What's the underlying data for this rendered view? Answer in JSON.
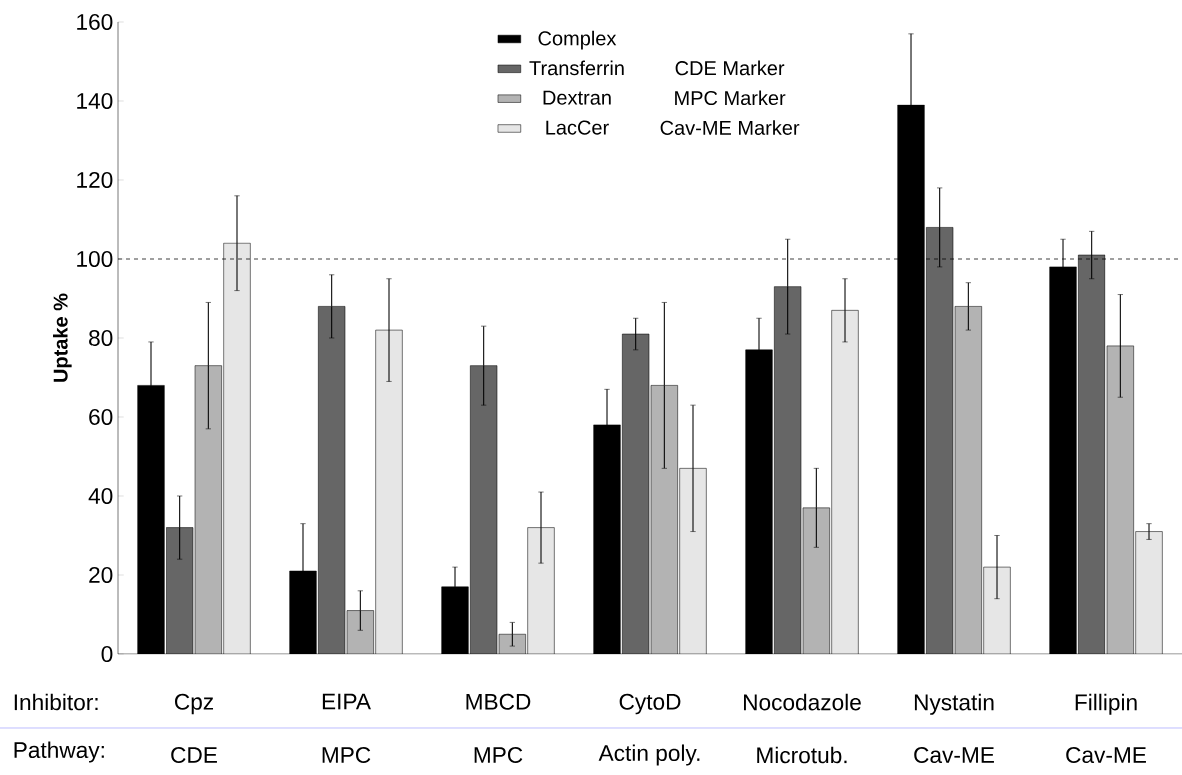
{
  "chart_data": {
    "type": "bar",
    "ylabel": "Uptake %",
    "categories": [
      "Cpz",
      "EIPA",
      "MBCD",
      "CytoD",
      "Nocodazole",
      "Nystatin",
      "Fillipin"
    ],
    "series": [
      {
        "name": "Complex",
        "color": "#000000",
        "values": [
          68,
          21,
          17,
          58,
          77,
          139,
          98
        ],
        "errors": [
          11,
          12,
          5,
          9,
          8,
          18,
          7
        ]
      },
      {
        "name": "Transferrin",
        "color": "#666666",
        "values": [
          32,
          88,
          73,
          81,
          93,
          108,
          101
        ],
        "errors": [
          8,
          8,
          10,
          4,
          12,
          10,
          6
        ]
      },
      {
        "name": "Dextran",
        "color": "#b3b3b3",
        "values": [
          73,
          11,
          5,
          68,
          37,
          88,
          78
        ],
        "errors": [
          16,
          5,
          3,
          21,
          10,
          6,
          13
        ]
      },
      {
        "name": "LacCer",
        "color": "#e6e6e6",
        "values": [
          104,
          82,
          32,
          47,
          87,
          22,
          31
        ],
        "errors": [
          12,
          13,
          9,
          16,
          8,
          8,
          2
        ]
      }
    ],
    "ylim": [
      0,
      160
    ],
    "yticks": [
      0,
      20,
      40,
      60,
      80,
      100,
      120,
      140,
      160
    ],
    "ref_lines": [
      {
        "axis": "y",
        "value": 100,
        "color": "#000000",
        "line_style": "dashed"
      }
    ],
    "legend": "top",
    "annotations": [
      "Inhibitor:",
      "Pathway:",
      "CDE",
      "MPC",
      "MPC",
      "Actin poly.",
      "Microtub.",
      "Cav-ME",
      "Cav-ME",
      "CDE Marker",
      "MPC Marker",
      "Cav-ME Marker"
    ]
  }
}
